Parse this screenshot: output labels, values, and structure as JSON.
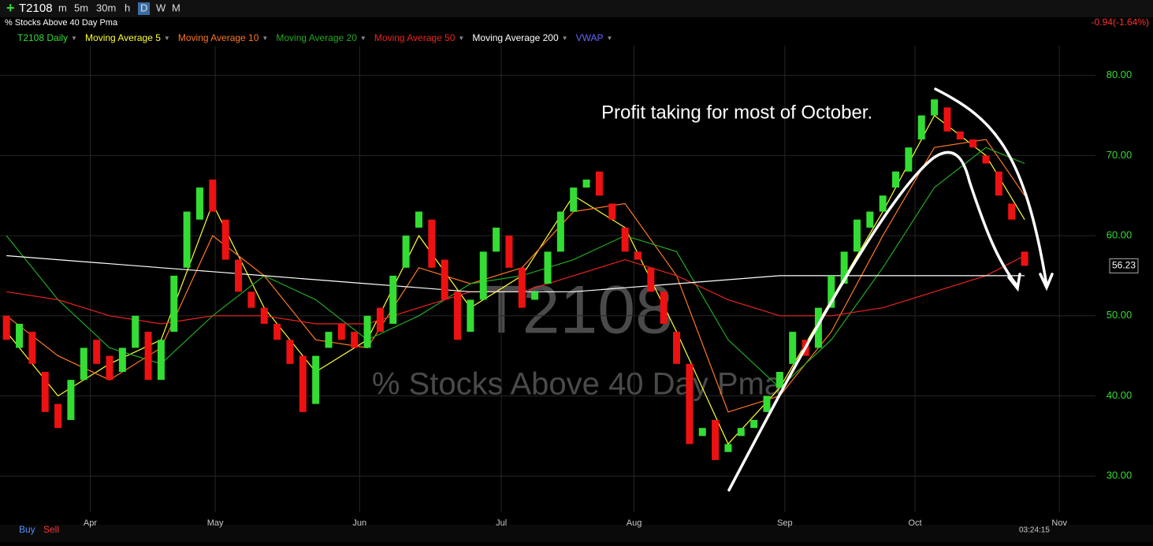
{
  "chart_data": {
    "type": "candlestick",
    "title": "T2108",
    "subtitle": "% Stocks Above 40 Day Pma",
    "timeframes": [
      "m",
      "5m",
      "30m",
      "h",
      "D",
      "W",
      "M"
    ],
    "change": "-0.94(-1.64%)",
    "candle_name": "T2108 Daily",
    "annotation": "Profit taking for most of October.",
    "up_color": "#33dd33",
    "down_color": "#ee1111",
    "open": [
      50,
      46,
      48,
      43,
      39,
      37,
      42,
      47,
      45,
      43,
      46,
      48,
      42,
      48,
      56,
      62,
      67,
      62,
      57,
      53,
      51,
      49,
      47,
      45,
      39,
      46,
      49,
      48,
      46,
      51,
      49,
      56,
      61,
      62,
      57,
      53,
      48,
      52,
      58,
      60,
      56,
      52,
      54,
      58,
      63,
      66,
      68,
      64,
      61,
      58,
      56,
      53,
      48,
      44,
      35,
      37,
      33,
      35,
      36,
      38,
      41,
      44,
      47,
      46,
      51,
      54,
      58,
      61,
      63,
      66,
      68,
      72,
      75,
      76,
      73,
      72,
      70,
      68,
      64,
      58
    ],
    "close": [
      47,
      49,
      44,
      38,
      36,
      42,
      46,
      44,
      42,
      46,
      50,
      42,
      47,
      55,
      63,
      66,
      63,
      57,
      53,
      51,
      49,
      47,
      44,
      38,
      45,
      48,
      47,
      46,
      50,
      48,
      55,
      60,
      63,
      56,
      52,
      47,
      52,
      58,
      61,
      56,
      51,
      53,
      58,
      63,
      66,
      67,
      65,
      62,
      58,
      57,
      53,
      49,
      44,
      34,
      36,
      32,
      34,
      36,
      37,
      40,
      43,
      48,
      45,
      51,
      55,
      58,
      62,
      63,
      65,
      68,
      71,
      75,
      77,
      73,
      72,
      71,
      69,
      65,
      62,
      56.23
    ],
    "series": [
      {
        "name": "Moving Average 5",
        "color": "#ffff33",
        "x": [
          0,
          4,
          8,
          12,
          16,
          20,
          24,
          28,
          32,
          36,
          40,
          44,
          48,
          52,
          56,
          60,
          64,
          68,
          72,
          76,
          79
        ],
        "values": [
          48,
          40,
          44,
          47,
          64,
          51,
          43,
          47,
          60,
          51,
          55,
          65,
          61,
          48,
          34,
          41,
          52,
          63,
          75,
          70,
          62
        ]
      },
      {
        "name": "Moving Average 10",
        "color": "#ff7722",
        "x": [
          0,
          4,
          8,
          12,
          16,
          20,
          24,
          28,
          32,
          36,
          40,
          44,
          48,
          52,
          56,
          60,
          64,
          68,
          72,
          76,
          79
        ],
        "values": [
          50,
          45,
          42,
          46,
          60,
          55,
          47,
          46,
          56,
          54,
          56,
          63,
          64,
          55,
          38,
          40,
          48,
          60,
          71,
          72,
          65
        ]
      },
      {
        "name": "Moving Average 20",
        "color": "#22aa22",
        "x": [
          0,
          4,
          8,
          12,
          16,
          20,
          24,
          28,
          32,
          36,
          40,
          44,
          48,
          52,
          56,
          60,
          64,
          68,
          72,
          76,
          79
        ],
        "values": [
          60,
          52,
          46,
          44,
          50,
          55,
          52,
          47,
          50,
          54,
          55,
          57,
          60,
          58,
          47,
          41,
          47,
          56,
          66,
          71,
          69
        ]
      },
      {
        "name": "Moving Average 50",
        "color": "#ee2222",
        "x": [
          0,
          4,
          8,
          12,
          16,
          20,
          24,
          28,
          32,
          36,
          40,
          44,
          48,
          52,
          56,
          60,
          64,
          68,
          72,
          76,
          79
        ],
        "values": [
          53,
          52,
          50,
          49,
          50,
          50,
          49,
          49,
          51,
          53,
          53,
          55,
          57,
          55,
          52,
          50,
          50,
          51,
          53,
          55,
          57.5
        ]
      },
      {
        "name": "Moving Average 200",
        "color": "#ffffff",
        "x": [
          0,
          4,
          8,
          12,
          16,
          20,
          24,
          28,
          32,
          36,
          40,
          44,
          48,
          52,
          56,
          60,
          64,
          68,
          72,
          76,
          79
        ],
        "values": [
          57.5,
          57,
          56.5,
          56,
          55.5,
          55,
          54.5,
          54,
          53.5,
          53,
          53,
          53,
          53.5,
          54,
          54.5,
          55,
          55,
          55,
          55,
          55,
          55
        ]
      }
    ],
    "extra_legend": [
      {
        "name": "VWAP",
        "color": "#6666ff"
      }
    ],
    "xlim": [
      -0.5,
      84.5
    ],
    "xticks": [
      {
        "value": 6.5,
        "label": "Apr"
      },
      {
        "value": 16.2,
        "label": "May"
      },
      {
        "value": 27.4,
        "label": "Jun"
      },
      {
        "value": 38.4,
        "label": "Jul"
      },
      {
        "value": 48.7,
        "label": "Aug"
      },
      {
        "value": 60.4,
        "label": "Sep"
      },
      {
        "value": 70.5,
        "label": "Oct"
      },
      {
        "value": 81.7,
        "label": "Nov"
      }
    ],
    "ylim": [
      25.5,
      83.7
    ],
    "yticks": [
      {
        "value": 30,
        "label": "30.00"
      },
      {
        "value": 40,
        "label": "40.00"
      },
      {
        "value": 50,
        "label": "50.00"
      },
      {
        "value": 60,
        "label": "60.00"
      },
      {
        "value": 70,
        "label": "70.00"
      },
      {
        "value": 80,
        "label": "80.00"
      }
    ],
    "buttons": {
      "buy": "Buy",
      "sell": "Sell"
    },
    "clock": "03:24:15"
  }
}
